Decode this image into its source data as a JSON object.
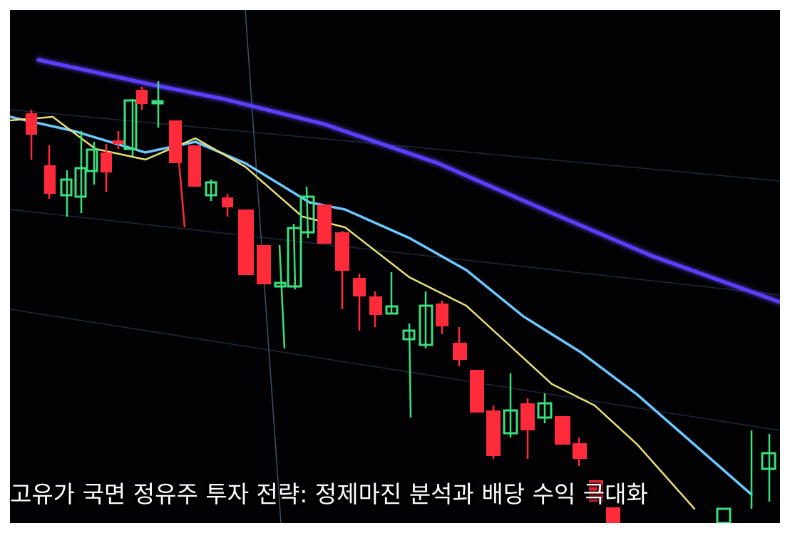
{
  "caption": "고유가 국면 정유주 투자 전략: 정제마진 분석과 배당 수익 극대화"
}
